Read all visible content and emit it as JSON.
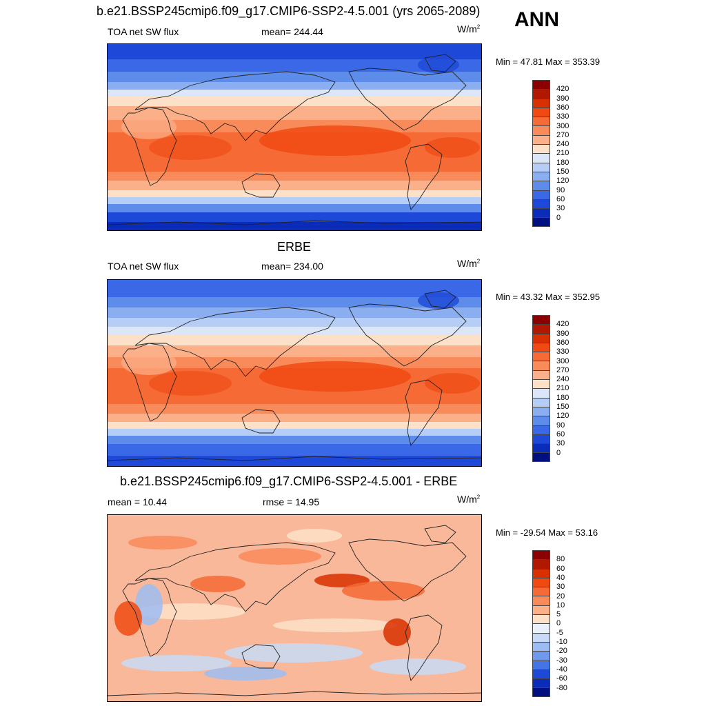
{
  "season": "ANN",
  "panels": [
    {
      "title": "b.e21.BSSP245cmip6.f09_g17.CMIP6-SSP2-4.5.001 (yrs 2065-2089)",
      "left_label": "TOA net SW flux",
      "center_label": "mean= 244.44",
      "units": "W/m",
      "units_sup": "2",
      "minmax": "Min =  47.81 Max = 353.39",
      "colorbar_labels": [
        "420",
        "390",
        "360",
        "330",
        "300",
        "270",
        "240",
        "210",
        "180",
        "150",
        "120",
        "90",
        "60",
        "30",
        "0"
      ],
      "colorbar_colors": [
        "#8b0000",
        "#b01800",
        "#d83000",
        "#f04a12",
        "#f56a35",
        "#f98a5a",
        "#fcb08a",
        "#fde0c8",
        "#dbe7f8",
        "#b6cdf5",
        "#8aaef0",
        "#5d8ceb",
        "#3a68e6",
        "#1e48d8",
        "#0b2cb8",
        "#001080"
      ],
      "field_type": "model"
    },
    {
      "title": "ERBE",
      "left_label": "TOA net SW flux",
      "center_label": "mean= 234.00",
      "units": "W/m",
      "units_sup": "2",
      "minmax": "Min =  43.32 Max = 352.95",
      "colorbar_labels": [
        "420",
        "390",
        "360",
        "330",
        "300",
        "270",
        "240",
        "210",
        "180",
        "150",
        "120",
        "90",
        "60",
        "30",
        "0"
      ],
      "colorbar_colors": [
        "#8b0000",
        "#b01800",
        "#d83000",
        "#f04a12",
        "#f56a35",
        "#f98a5a",
        "#fcb08a",
        "#fde0c8",
        "#dbe7f8",
        "#b6cdf5",
        "#8aaef0",
        "#5d8ceb",
        "#3a68e6",
        "#1e48d8",
        "#0b2cb8",
        "#001080"
      ],
      "field_type": "obs"
    },
    {
      "title": "b.e21.BSSP245cmip6.f09_g17.CMIP6-SSP2-4.5.001 - ERBE",
      "left_label": "mean =  10.44",
      "center_label": "rmse =  14.95",
      "units": "W/m",
      "units_sup": "2",
      "minmax": "Min = -29.54 Max =  53.16",
      "colorbar_labels": [
        "80",
        "60",
        "40",
        "30",
        "20",
        "10",
        "5",
        "0",
        "-5",
        "-10",
        "-20",
        "-30",
        "-40",
        "-60",
        "-80"
      ],
      "colorbar_colors": [
        "#8b0000",
        "#b01800",
        "#d83000",
        "#f04a12",
        "#f56a35",
        "#f98a5a",
        "#fcb08a",
        "#fde0c8",
        "#e8f0fb",
        "#c8daf6",
        "#9dbcf2",
        "#6f9aec",
        "#4474e6",
        "#1e48d8",
        "#0b2cb8",
        "#001080"
      ],
      "field_type": "diff"
    }
  ]
}
